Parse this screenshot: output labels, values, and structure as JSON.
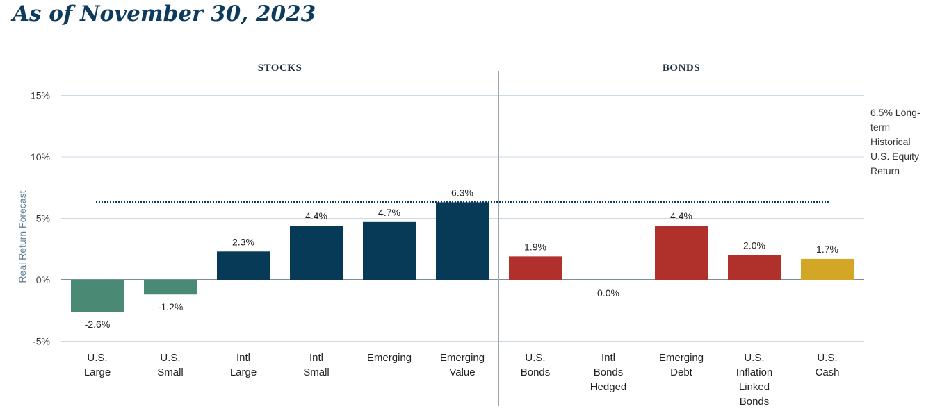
{
  "title": "As of November 30, 2023",
  "chart_data": {
    "type": "bar",
    "ylabel": "Real Return Forecast",
    "ylim": [
      -5,
      15
    ],
    "yticks": [
      -5,
      0,
      5,
      10,
      15
    ],
    "ytick_labels": [
      "-5%",
      "0%",
      "5%",
      "10%",
      "15%"
    ],
    "groups": [
      {
        "label": "STOCKS",
        "categories": [
          0,
          5
        ]
      },
      {
        "label": "BONDS",
        "categories": [
          6,
          10
        ]
      }
    ],
    "categories": [
      [
        "U.S.",
        "Large"
      ],
      [
        "U.S.",
        "Small"
      ],
      [
        "Intl",
        "Large"
      ],
      [
        "Intl",
        "Small"
      ],
      [
        "Emerging"
      ],
      [
        "Emerging",
        "Value"
      ],
      [
        "U.S.",
        "Bonds"
      ],
      [
        "Intl",
        "Bonds",
        "Hedged"
      ],
      [
        "Emerging",
        "Debt"
      ],
      [
        "U.S.",
        "Inflation",
        "Linked",
        "Bonds"
      ],
      [
        "U.S.",
        "Cash"
      ]
    ],
    "values": [
      -2.6,
      -1.2,
      2.3,
      4.4,
      4.7,
      6.3,
      1.9,
      0.0,
      4.4,
      2.0,
      1.7
    ],
    "value_labels": [
      "-2.6%",
      "-1.2%",
      "2.3%",
      "4.4%",
      "4.7%",
      "6.3%",
      "1.9%",
      "0.0%",
      "4.4%",
      "2.0%",
      "1.7%"
    ],
    "colors": [
      "#4a8a74",
      "#4a8a74",
      "#063a57",
      "#063a57",
      "#063a57",
      "#063a57",
      "#b0302b",
      "#b0302b",
      "#b0302b",
      "#b0302b",
      "#d4a626"
    ],
    "reference_line": {
      "value": 6.5,
      "label_lines": [
        "6.5% Long-",
        "term",
        "Historical",
        "U.S. Equity",
        "Return"
      ],
      "color": "#0d3b5e",
      "style": "dotted"
    },
    "grid": true
  }
}
